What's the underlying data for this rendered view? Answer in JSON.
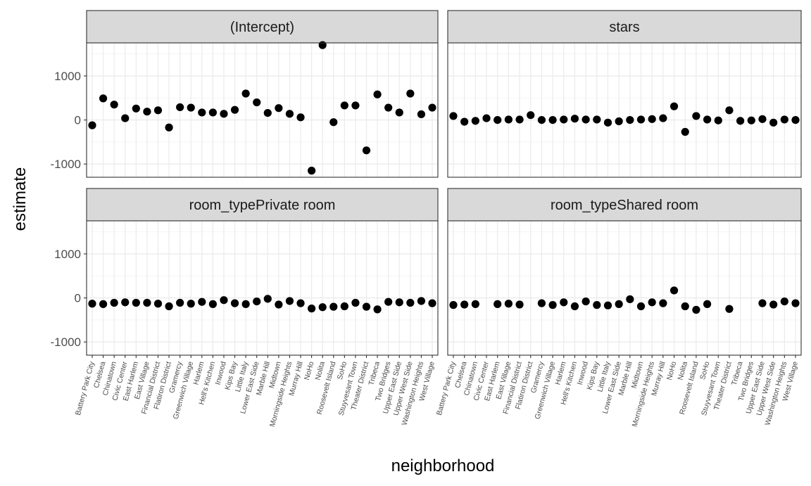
{
  "chart_data": {
    "type": "scatter",
    "facet_layout": "2x2 grid, shared x and y axes",
    "xlabel": "neighborhood",
    "ylabel": "estimate",
    "ylim": [
      -1300,
      1750
    ],
    "yticks": [
      -1000,
      0,
      1000
    ],
    "ytick_labels": [
      "-1000",
      "0",
      "1000"
    ],
    "grid": true,
    "panels": [
      {
        "strip": "(Intercept)",
        "categories": [
          "Battery Park City",
          "Chelsea",
          "Chinatown",
          "Civic Center",
          "East Harlem",
          "East Village",
          "Financial District",
          "Flatiron District",
          "Gramercy",
          "Greenwich Village",
          "Harlem",
          "Hell's Kitchen",
          "Inwood",
          "Kips Bay",
          "Little Italy",
          "Lower East Side",
          "Marble Hill",
          "Midtown",
          "Morningside Heights",
          "Murray Hill",
          "NoHo",
          "Nolita",
          "Roosevelt Island",
          "SoHo",
          "Stuyvesant Town",
          "Theater District",
          "Tribeca",
          "Two Bridges",
          "Upper East Side",
          "Upper West Side",
          "Washington Heights",
          "West Village"
        ],
        "values": [
          -120,
          490,
          350,
          40,
          260,
          190,
          220,
          -170,
          290,
          280,
          170,
          170,
          140,
          230,
          600,
          400,
          160,
          270,
          140,
          60,
          -1150,
          1700,
          -50,
          330,
          330,
          -690,
          580,
          280,
          170,
          600,
          130,
          280
        ]
      },
      {
        "strip": "stars",
        "categories": [
          "Battery Park City",
          "Chelsea",
          "Chinatown",
          "Civic Center",
          "East Harlem",
          "East Village",
          "Financial District",
          "Flatiron District",
          "Gramercy",
          "Greenwich Village",
          "Harlem",
          "Hell's Kitchen",
          "Inwood",
          "Kips Bay",
          "Little Italy",
          "Lower East Side",
          "Marble Hill",
          "Midtown",
          "Morningside Heights",
          "Murray Hill",
          "NoHo",
          "Nolita",
          "Roosevelt Island",
          "SoHo",
          "Stuyvesant Town",
          "Theater District",
          "Tribeca",
          "Two Bridges",
          "Upper East Side",
          "Upper West Side",
          "Washington Heights",
          "West Village"
        ],
        "values": [
          90,
          -40,
          -20,
          40,
          0,
          10,
          10,
          110,
          0,
          0,
          10,
          30,
          10,
          10,
          -60,
          -30,
          0,
          10,
          20,
          40,
          310,
          -270,
          90,
          10,
          -10,
          220,
          -20,
          -10,
          20,
          -60,
          10,
          0
        ]
      },
      {
        "strip": "room_typePrivate room",
        "categories": [
          "Battery Park City",
          "Chelsea",
          "Chinatown",
          "Civic Center",
          "East Harlem",
          "East Village",
          "Financial District",
          "Flatiron District",
          "Gramercy",
          "Greenwich Village",
          "Harlem",
          "Hell's Kitchen",
          "Inwood",
          "Kips Bay",
          "Little Italy",
          "Lower East Side",
          "Marble Hill",
          "Midtown",
          "Morningside Heights",
          "Murray Hill",
          "NoHo",
          "Nolita",
          "Roosevelt Island",
          "SoHo",
          "Stuyvesant Town",
          "Theater District",
          "Tribeca",
          "Two Bridges",
          "Upper East Side",
          "Upper West Side",
          "Washington Heights",
          "West Village"
        ],
        "values": [
          -130,
          -140,
          -110,
          -100,
          -110,
          -110,
          -130,
          -190,
          -110,
          -130,
          -90,
          -140,
          -50,
          -120,
          -140,
          -80,
          -20,
          -150,
          -70,
          -120,
          -240,
          -210,
          -200,
          -190,
          -110,
          -200,
          -260,
          -90,
          -100,
          -110,
          -70,
          -120
        ]
      },
      {
        "strip": "room_typeShared room",
        "categories": [
          "Battery Park City",
          "Chelsea",
          "Chinatown",
          "East Harlem",
          "East Village",
          "Financial District",
          "Gramercy",
          "Greenwich Village",
          "Harlem",
          "Hell's Kitchen",
          "Inwood",
          "Kips Bay",
          "Little Italy",
          "Lower East Side",
          "Marble Hill",
          "Midtown",
          "Morningside Heights",
          "Murray Hill",
          "NoHo",
          "Nolita",
          "Roosevelt Island",
          "SoHo",
          "Theater District",
          "Upper East Side",
          "Upper West Side",
          "Washington Heights",
          "West Village"
        ],
        "values": [
          -160,
          -150,
          -140,
          -140,
          -130,
          -150,
          -120,
          -160,
          -100,
          -190,
          -80,
          -160,
          -170,
          -140,
          -30,
          -190,
          -100,
          -120,
          170,
          -190,
          -270,
          -140,
          -250,
          -120,
          -150,
          -80,
          -120
        ]
      }
    ],
    "x_tick_labels_bottom_left": [
      "Battery Park City",
      "Chelsea",
      "Chinatown",
      "Civic Center",
      "East Harlem",
      "East Village",
      "Financial District",
      "Flatiron District",
      "Gramercy",
      "Greenwich Village",
      "Harlem",
      "Hell's Kitchen",
      "Inwood",
      "Kips Bay",
      "Little Italy",
      "Lower East Side",
      "Marble Hill",
      "Midtown",
      "Morningside Heights",
      "Murray Hill",
      "NoHo",
      "Nolita",
      "Roosevelt Island",
      "SoHo",
      "Stuyvesant Town",
      "Theater District",
      "Tribeca",
      "Two Bridges",
      "Upper East Side",
      "Upper West Side",
      "Washington Heights",
      "West Village"
    ],
    "x_tick_labels_bottom_right": [
      "Battery Park City",
      "Chelsea",
      "Chinatown",
      "Civic Center",
      "East Harlem",
      "East Village",
      "Financial District",
      "Flatiron District",
      "Gramercy",
      "Greenwich Village",
      "Harlem",
      "Hell's Kitchen",
      "Inwood",
      "Kips Bay",
      "Little Italy",
      "Lower East Side",
      "Marble Hill",
      "Midtown",
      "Morningside Heights",
      "Murray Hill",
      "NoHo",
      "Nolita",
      "Roosevelt Island",
      "SoHo",
      "Stuyvesant Town",
      "Theater District",
      "Tribeca",
      "Two Bridges",
      "Upper East Side",
      "Upper West Side",
      "Washington Heights",
      "West Village"
    ],
    "colors": {
      "point": "#000000",
      "strip_fill": "#d9d9d9",
      "strip_border": "#333333",
      "panel_border": "#333333",
      "grid": "#ebebeb",
      "tick_text": "#4d4d4d"
    }
  }
}
